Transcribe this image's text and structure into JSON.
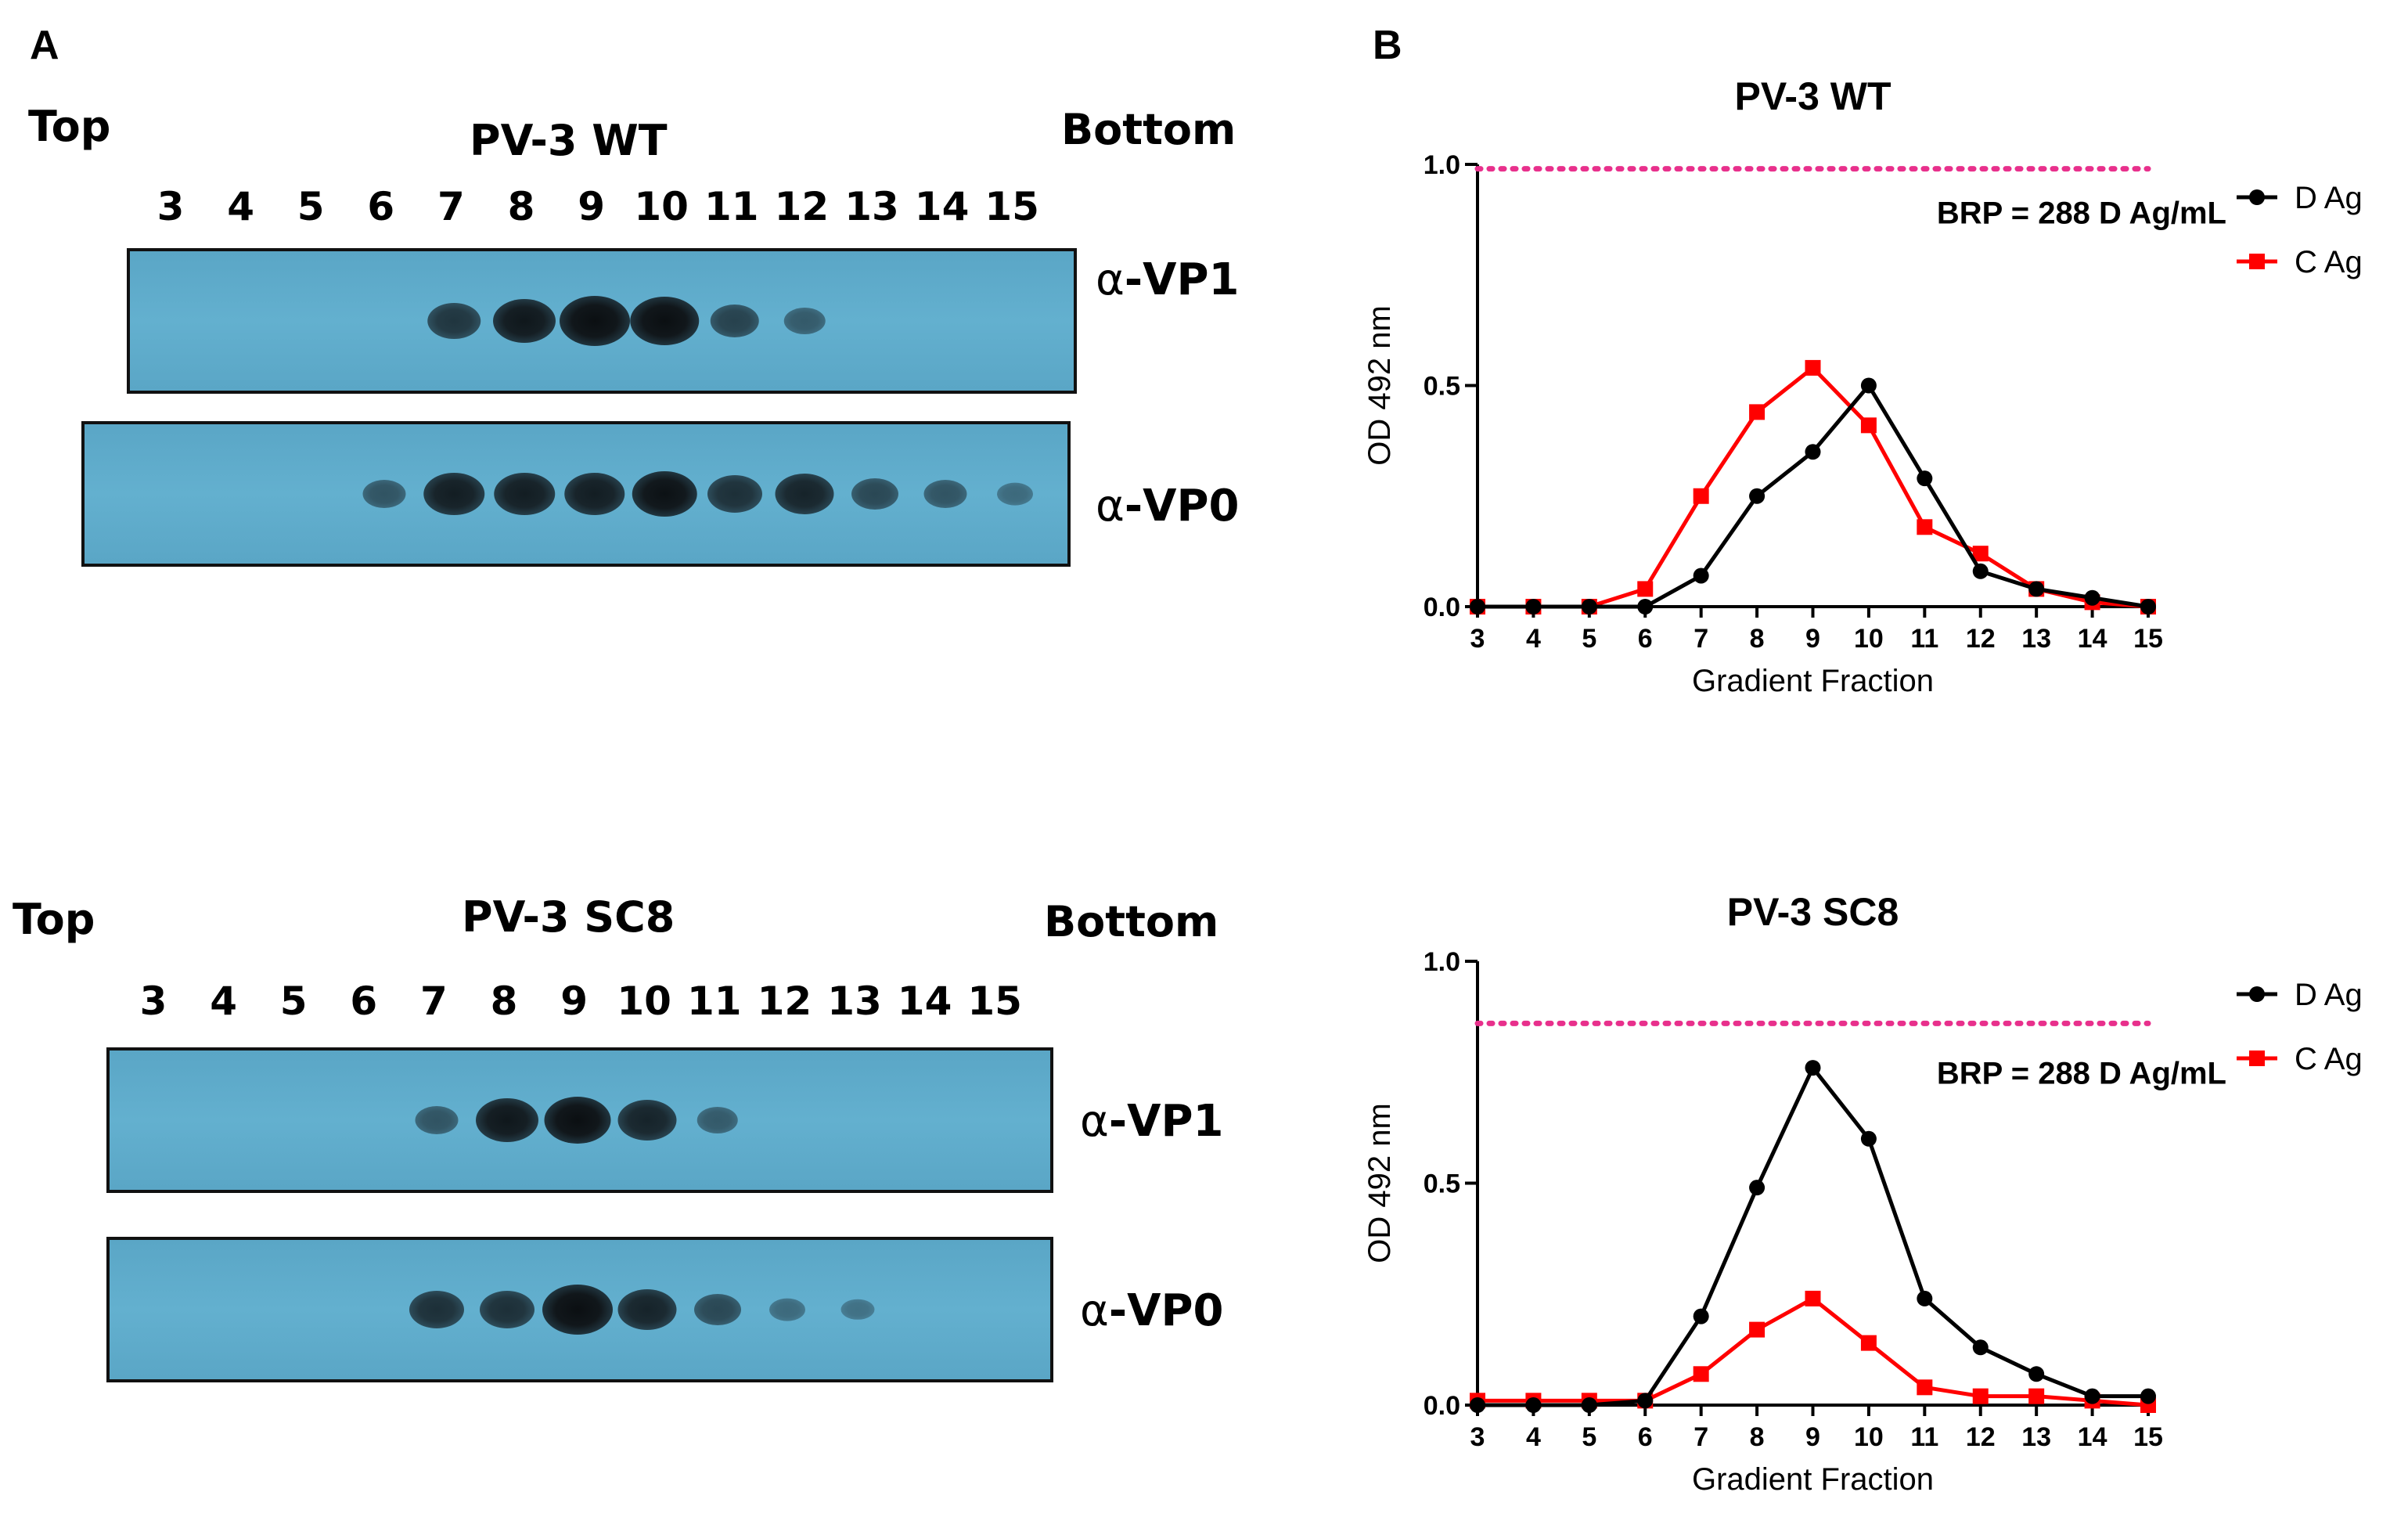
{
  "panel_a": {
    "letter": "A",
    "blots": [
      {
        "top_label": "Top",
        "title": "PV-3 WT",
        "bottom_label": "Bottom",
        "lanes": [
          "3",
          "4",
          "5",
          "6",
          "7",
          "8",
          "9",
          "10",
          "11",
          "12",
          "13",
          "14",
          "15"
        ],
        "membranes": [
          {
            "greek": "α",
            "antibody": "-VP1",
            "intensity": [
              0,
              0,
              0,
              0,
              0.55,
              0.8,
              1.0,
              0.95,
              0.45,
              0.25,
              0,
              0,
              0
            ]
          },
          {
            "greek": "α",
            "antibody": "-VP0",
            "intensity": [
              0,
              0,
              0,
              0.3,
              0.75,
              0.75,
              0.75,
              0.85,
              0.6,
              0.7,
              0.4,
              0.3,
              0.12
            ]
          }
        ]
      },
      {
        "top_label": "Top",
        "title": "PV-3 SC8",
        "bottom_label": "Bottom",
        "lanes": [
          "3",
          "4",
          "5",
          "6",
          "7",
          "8",
          "9",
          "10",
          "11",
          "12",
          "13",
          "14",
          "15"
        ],
        "membranes": [
          {
            "greek": "α",
            "antibody": "-VP1",
            "intensity": [
              0,
              0,
              0,
              0,
              0.3,
              0.8,
              0.9,
              0.7,
              0.25,
              0,
              0,
              0,
              0
            ]
          },
          {
            "greek": "α",
            "antibody": "-VP0",
            "intensity": [
              0,
              0,
              0,
              0,
              0.6,
              0.6,
              1.0,
              0.7,
              0.4,
              0.12,
              0.06,
              0,
              0
            ]
          }
        ]
      }
    ]
  },
  "panel_b": {
    "letter": "B"
  },
  "chart_data": [
    {
      "type": "line",
      "title": "PV-3 WT",
      "xlabel": "Gradient Fraction",
      "ylabel": "OD 492 nm",
      "x": [
        3,
        4,
        5,
        6,
        7,
        8,
        9,
        10,
        11,
        12,
        13,
        14,
        15
      ],
      "xlim": [
        3,
        15
      ],
      "ylim": [
        0,
        1.0
      ],
      "yticks": [
        "0.0",
        "0.5",
        "1.0"
      ],
      "series": [
        {
          "name": "D Ag",
          "color": "#000000",
          "marker": "circle",
          "values": [
            0,
            0,
            0,
            0,
            0.07,
            0.25,
            0.35,
            0.5,
            0.29,
            0.08,
            0.04,
            0.02,
            0
          ]
        },
        {
          "name": "C Ag",
          "color": "#ff0000",
          "marker": "square",
          "values": [
            0,
            0,
            0,
            0.04,
            0.25,
            0.44,
            0.54,
            0.41,
            0.18,
            0.12,
            0.04,
            0.01,
            0
          ]
        }
      ],
      "reference_line": {
        "value": 0.99,
        "color": "#e8308c",
        "label": "BRP = 288 D Ag/mL"
      },
      "legend_position": "right"
    },
    {
      "type": "line",
      "title": "PV-3 SC8",
      "xlabel": "Gradient Fraction",
      "ylabel": "OD 492 nm",
      "x": [
        3,
        4,
        5,
        6,
        7,
        8,
        9,
        10,
        11,
        12,
        13,
        14,
        15
      ],
      "xlim": [
        3,
        15
      ],
      "ylim": [
        0,
        1.0
      ],
      "yticks": [
        "0.0",
        "0.5",
        "1.0"
      ],
      "series": [
        {
          "name": "D Ag",
          "color": "#000000",
          "marker": "circle",
          "values": [
            0,
            0,
            0,
            0.01,
            0.2,
            0.49,
            0.76,
            0.6,
            0.24,
            0.13,
            0.07,
            0.02,
            0.02
          ]
        },
        {
          "name": "C Ag",
          "color": "#ff0000",
          "marker": "square",
          "values": [
            0.01,
            0.01,
            0.01,
            0.01,
            0.07,
            0.17,
            0.24,
            0.14,
            0.04,
            0.02,
            0.02,
            0.01,
            0
          ]
        }
      ],
      "reference_line": {
        "value": 0.86,
        "color": "#e8308c",
        "label": "BRP = 288 D Ag/mL"
      },
      "legend_position": "right"
    }
  ]
}
